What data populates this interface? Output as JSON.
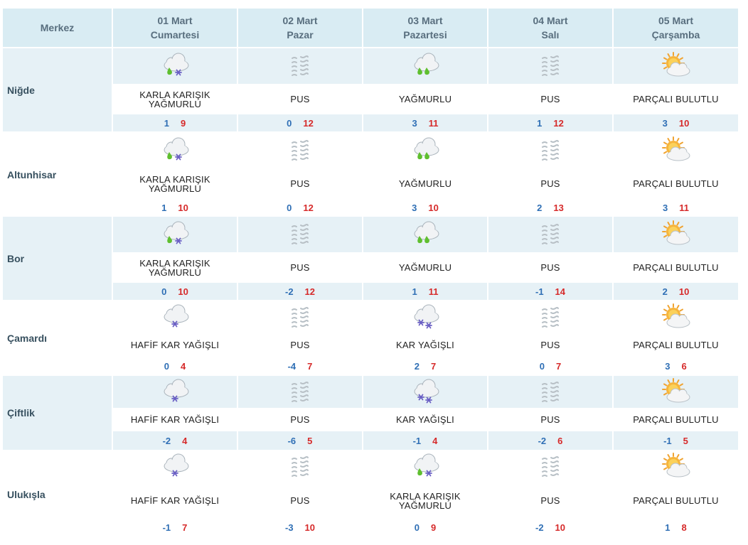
{
  "header": {
    "first": "Merkez",
    "days": [
      {
        "date": "01 Mart",
        "weekday": "Cumartesi"
      },
      {
        "date": "02 Mart",
        "weekday": "Pazar"
      },
      {
        "date": "03 Mart",
        "weekday": "Pazartesi"
      },
      {
        "date": "04 Mart",
        "weekday": "Salı"
      },
      {
        "date": "05 Mart",
        "weekday": "Çarşamba"
      }
    ]
  },
  "colors": {
    "header_bg": "#d9ecf3",
    "band_bg": "#e6f1f6",
    "min_temp": "#2f6fb5",
    "max_temp": "#d62a2a",
    "city_text": "#37505f"
  },
  "rows": [
    {
      "city": "Niğde",
      "days": [
        {
          "icon": "rain-snow-icon",
          "desc": [
            "KARLA KARIŞIK",
            "YAĞMURLU"
          ],
          "min": "1",
          "max": "9"
        },
        {
          "icon": "fog-icon",
          "desc": [
            "PUS"
          ],
          "min": "0",
          "max": "12"
        },
        {
          "icon": "rain-icon",
          "desc": [
            "YAĞMURLU"
          ],
          "min": "3",
          "max": "11"
        },
        {
          "icon": "fog-icon",
          "desc": [
            "PUS"
          ],
          "min": "1",
          "max": "12"
        },
        {
          "icon": "partly-cloudy-icon",
          "desc": [
            "PARÇALI BULUTLU"
          ],
          "min": "3",
          "max": "10"
        }
      ]
    },
    {
      "city": "Altunhisar",
      "days": [
        {
          "icon": "rain-snow-icon",
          "desc": [
            "KARLA KARIŞIK",
            "YAĞMURLU"
          ],
          "min": "1",
          "max": "10"
        },
        {
          "icon": "fog-icon",
          "desc": [
            "PUS"
          ],
          "min": "0",
          "max": "12"
        },
        {
          "icon": "rain-icon",
          "desc": [
            "YAĞMURLU"
          ],
          "min": "3",
          "max": "10"
        },
        {
          "icon": "fog-icon",
          "desc": [
            "PUS"
          ],
          "min": "2",
          "max": "13"
        },
        {
          "icon": "partly-cloudy-icon",
          "desc": [
            "PARÇALI BULUTLU"
          ],
          "min": "3",
          "max": "11"
        }
      ]
    },
    {
      "city": "Bor",
      "days": [
        {
          "icon": "rain-snow-icon",
          "desc": [
            "KARLA KARIŞIK",
            "YAĞMURLU"
          ],
          "min": "0",
          "max": "10"
        },
        {
          "icon": "fog-icon",
          "desc": [
            "PUS"
          ],
          "min": "-2",
          "max": "12"
        },
        {
          "icon": "rain-icon",
          "desc": [
            "YAĞMURLU"
          ],
          "min": "1",
          "max": "11"
        },
        {
          "icon": "fog-icon",
          "desc": [
            "PUS"
          ],
          "min": "-1",
          "max": "14"
        },
        {
          "icon": "partly-cloudy-icon",
          "desc": [
            "PARÇALI BULUTLU"
          ],
          "min": "2",
          "max": "10"
        }
      ]
    },
    {
      "city": "Çamardı",
      "days": [
        {
          "icon": "light-snow-icon",
          "desc": [
            "HAFİF KAR YAĞIŞLI"
          ],
          "min": "0",
          "max": "4"
        },
        {
          "icon": "fog-icon",
          "desc": [
            "PUS"
          ],
          "min": "-4",
          "max": "7"
        },
        {
          "icon": "snow-icon",
          "desc": [
            "KAR YAĞIŞLI"
          ],
          "min": "2",
          "max": "7"
        },
        {
          "icon": "fog-icon",
          "desc": [
            "PUS"
          ],
          "min": "0",
          "max": "7"
        },
        {
          "icon": "partly-cloudy-icon",
          "desc": [
            "PARÇALI BULUTLU"
          ],
          "min": "3",
          "max": "6"
        }
      ]
    },
    {
      "city": "Çiftlik",
      "days": [
        {
          "icon": "light-snow-icon",
          "desc": [
            "HAFİF KAR YAĞIŞLI"
          ],
          "min": "-2",
          "max": "4"
        },
        {
          "icon": "fog-icon",
          "desc": [
            "PUS"
          ],
          "min": "-6",
          "max": "5"
        },
        {
          "icon": "snow-icon",
          "desc": [
            "KAR YAĞIŞLI"
          ],
          "min": "-1",
          "max": "4"
        },
        {
          "icon": "fog-icon",
          "desc": [
            "PUS"
          ],
          "min": "-2",
          "max": "6"
        },
        {
          "icon": "partly-cloudy-icon",
          "desc": [
            "PARÇALI BULUTLU"
          ],
          "min": "-1",
          "max": "5"
        }
      ]
    },
    {
      "city": "Ulukışla",
      "days": [
        {
          "icon": "light-snow-icon",
          "desc": [
            "HAFİF KAR YAĞIŞLI"
          ],
          "min": "-1",
          "max": "7"
        },
        {
          "icon": "fog-icon",
          "desc": [
            "PUS"
          ],
          "min": "-3",
          "max": "10"
        },
        {
          "icon": "rain-snow-icon",
          "desc": [
            "KARLA KARIŞIK",
            "YAĞMURLU"
          ],
          "min": "0",
          "max": "9"
        },
        {
          "icon": "fog-icon",
          "desc": [
            "PUS"
          ],
          "min": "-2",
          "max": "10"
        },
        {
          "icon": "partly-cloudy-icon",
          "desc": [
            "PARÇALI BULUTLU"
          ],
          "min": "1",
          "max": "8"
        }
      ]
    }
  ]
}
